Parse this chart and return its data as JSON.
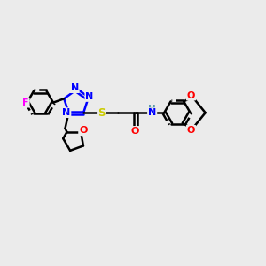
{
  "bg_color": "#ebebeb",
  "atom_colors": {
    "C": "#000000",
    "N": "#0000ff",
    "O": "#ff0000",
    "S": "#cccc00",
    "F": "#ff00ff",
    "H": "#5a9aaa"
  },
  "bond_color": "#000000",
  "bond_width": 1.8,
  "aromatic_dash": true
}
